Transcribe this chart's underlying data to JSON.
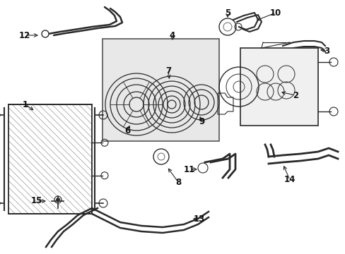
{
  "bg_color": "#ffffff",
  "line_color": "#2a2a2a",
  "box_bg": "#e8e8e8",
  "box_border": "#555555",
  "label_fontsize": 8.5
}
